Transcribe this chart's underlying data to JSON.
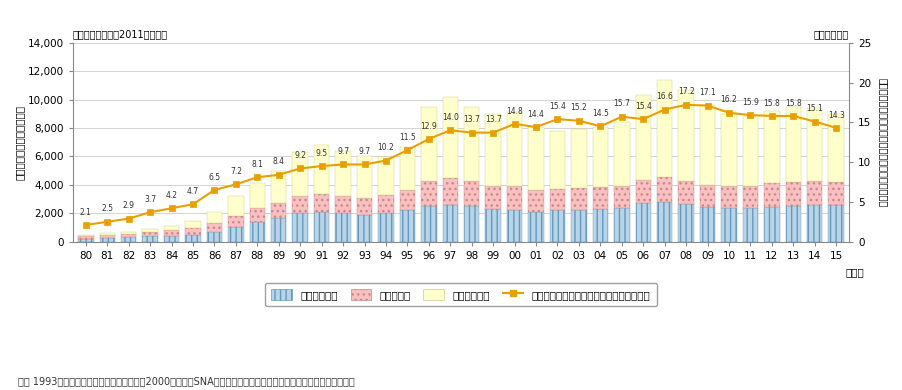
{
  "year_labels": [
    "80",
    "81",
    "82",
    "83",
    "84",
    "85",
    "86",
    "87",
    "88",
    "89",
    "90",
    "91",
    "92",
    "93",
    "94",
    "95",
    "96",
    "97",
    "98",
    "99",
    "00",
    "01",
    "02",
    "03",
    "04",
    "05",
    "06",
    "07",
    "08",
    "09",
    "10",
    "11",
    "12",
    "13",
    "14",
    "15"
  ],
  "telecom": [
    220,
    270,
    310,
    370,
    420,
    500,
    700,
    1050,
    1400,
    1650,
    2000,
    2100,
    2000,
    1900,
    2000,
    2200,
    2500,
    2600,
    2500,
    2300,
    2250,
    2100,
    2200,
    2250,
    2300,
    2400,
    2700,
    2800,
    2650,
    2450,
    2350,
    2350,
    2450,
    2500,
    2600,
    2550
  ],
  "computer": [
    150,
    190,
    240,
    300,
    380,
    460,
    620,
    780,
    950,
    1050,
    1200,
    1250,
    1200,
    1150,
    1250,
    1450,
    1750,
    1850,
    1750,
    1650,
    1650,
    1550,
    1500,
    1500,
    1550,
    1550,
    1650,
    1750,
    1650,
    1550,
    1550,
    1550,
    1650,
    1700,
    1700,
    1650
  ],
  "software": [
    100,
    130,
    160,
    210,
    270,
    500,
    800,
    1350,
    1800,
    2300,
    3100,
    3450,
    3200,
    3000,
    2700,
    3000,
    5250,
    5750,
    5200,
    5000,
    5200,
    4400,
    4100,
    4150,
    4250,
    4500,
    5950,
    6800,
    6350,
    5600,
    5100,
    4950,
    5100,
    5250,
    5100,
    4800
  ],
  "ratio": [
    2.1,
    2.5,
    2.9,
    3.7,
    4.2,
    4.7,
    6.5,
    7.2,
    8.1,
    8.4,
    9.2,
    9.5,
    9.7,
    9.7,
    10.2,
    11.5,
    12.9,
    14.0,
    13.7,
    13.7,
    14.8,
    14.4,
    15.4,
    15.2,
    14.5,
    15.7,
    15.4,
    16.6,
    17.2,
    17.1,
    16.2,
    15.9,
    15.8,
    15.8,
    15.1,
    14.3
  ],
  "telecom_color": "#b8d4e8",
  "computer_color": "#f8c0c0",
  "software_color": "#ffffcc",
  "ratio_color": "#e8a000",
  "ylim_left": [
    0,
    14000
  ],
  "ylim_right": [
    0,
    25
  ],
  "yticks_left": [
    0,
    2000,
    4000,
    6000,
    8000,
    10000,
    12000,
    14000
  ],
  "yticks_right": [
    0,
    5,
    10,
    15,
    20,
    25
  ],
  "ylabel_left": "民間企業情報化設備投賄額",
  "ylabel_right": "民間企業設備投賄に占める情報化投賄比率（注）",
  "unit_left": "（単位：十億円、2011年価格）",
  "unit_right": "（単位：％）",
  "legend_telecom": "電気通信機器",
  "legend_computer": "電子計算機",
  "legend_software": "ソフトウェア",
  "legend_ratio": "民間企業設備投賄に占める情報化投賄比率",
  "note": "注） 1993年以前の民間企業設備投賄額は、2000年基準のSNA支出系列より簡便な方法で進及推計したものである。",
  "xlabel": "（年）",
  "bg_color": "#ffffff",
  "grid_color": "#cccccc"
}
